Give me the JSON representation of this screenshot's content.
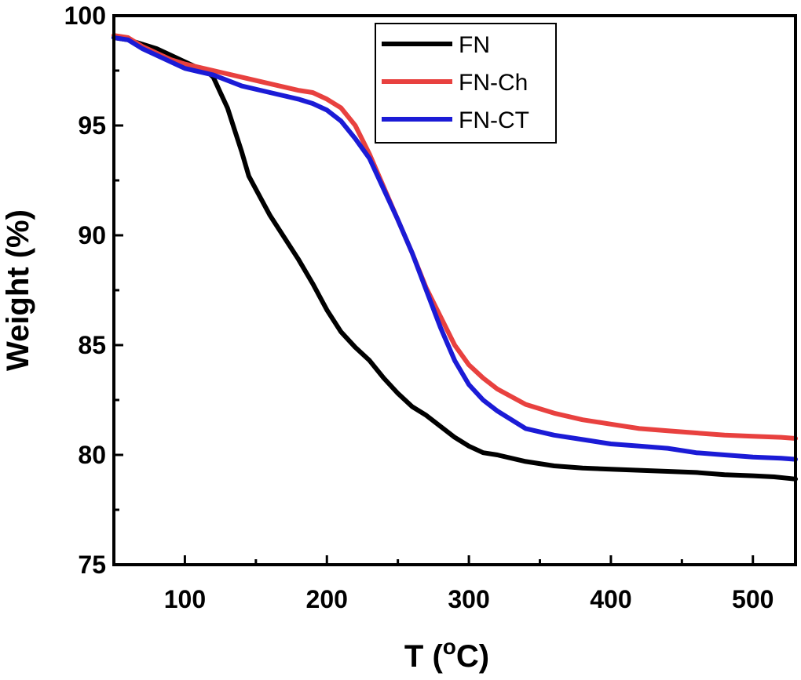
{
  "chart_data": {
    "type": "line",
    "title": "",
    "xlabel": "T (",
    "xlabel_sup": "o",
    "xlabel_end": "C)",
    "ylabel": "Weight (%)",
    "xlim": [
      50,
      530
    ],
    "ylim": [
      75,
      100
    ],
    "x_ticks": [
      100,
      200,
      300,
      400,
      500
    ],
    "y_ticks": [
      75,
      80,
      85,
      90,
      95,
      100
    ],
    "grid": false,
    "legend_position": "top-center",
    "series": [
      {
        "name": "FN",
        "color": "#000000",
        "points": [
          [
            50,
            99.0
          ],
          [
            60,
            98.9
          ],
          [
            70,
            98.7
          ],
          [
            80,
            98.5
          ],
          [
            90,
            98.2
          ],
          [
            100,
            97.9
          ],
          [
            110,
            97.6
          ],
          [
            115,
            97.5
          ],
          [
            120,
            97.2
          ],
          [
            125,
            96.5
          ],
          [
            130,
            95.8
          ],
          [
            135,
            94.8
          ],
          [
            140,
            93.8
          ],
          [
            145,
            92.7
          ],
          [
            150,
            92.1
          ],
          [
            160,
            90.9
          ],
          [
            170,
            89.9
          ],
          [
            180,
            88.9
          ],
          [
            190,
            87.8
          ],
          [
            200,
            86.6
          ],
          [
            210,
            85.6
          ],
          [
            220,
            84.9
          ],
          [
            230,
            84.3
          ],
          [
            240,
            83.5
          ],
          [
            250,
            82.8
          ],
          [
            260,
            82.2
          ],
          [
            270,
            81.8
          ],
          [
            280,
            81.3
          ],
          [
            290,
            80.8
          ],
          [
            300,
            80.4
          ],
          [
            310,
            80.1
          ],
          [
            320,
            80.0
          ],
          [
            340,
            79.7
          ],
          [
            360,
            79.5
          ],
          [
            380,
            79.4
          ],
          [
            400,
            79.35
          ],
          [
            420,
            79.3
          ],
          [
            440,
            79.25
          ],
          [
            460,
            79.2
          ],
          [
            480,
            79.1
          ],
          [
            500,
            79.05
          ],
          [
            515,
            79.0
          ],
          [
            530,
            78.9
          ]
        ]
      },
      {
        "name": "FN-Ch",
        "color": "#e8413f",
        "points": [
          [
            50,
            99.1
          ],
          [
            60,
            99.0
          ],
          [
            70,
            98.6
          ],
          [
            80,
            98.3
          ],
          [
            90,
            98.0
          ],
          [
            100,
            97.8
          ],
          [
            120,
            97.5
          ],
          [
            140,
            97.2
          ],
          [
            160,
            96.9
          ],
          [
            180,
            96.6
          ],
          [
            190,
            96.5
          ],
          [
            200,
            96.2
          ],
          [
            210,
            95.8
          ],
          [
            220,
            95.0
          ],
          [
            230,
            93.7
          ],
          [
            240,
            92.2
          ],
          [
            250,
            90.7
          ],
          [
            260,
            89.2
          ],
          [
            270,
            87.6
          ],
          [
            280,
            86.3
          ],
          [
            290,
            85.0
          ],
          [
            300,
            84.1
          ],
          [
            310,
            83.5
          ],
          [
            320,
            83.0
          ],
          [
            340,
            82.3
          ],
          [
            360,
            81.9
          ],
          [
            380,
            81.6
          ],
          [
            400,
            81.4
          ],
          [
            420,
            81.2
          ],
          [
            440,
            81.1
          ],
          [
            460,
            81.0
          ],
          [
            480,
            80.9
          ],
          [
            500,
            80.85
          ],
          [
            520,
            80.8
          ],
          [
            530,
            80.75
          ]
        ]
      },
      {
        "name": "FN-CT",
        "color": "#1b1bd6",
        "points": [
          [
            50,
            99.0
          ],
          [
            60,
            98.9
          ],
          [
            70,
            98.5
          ],
          [
            80,
            98.2
          ],
          [
            90,
            97.9
          ],
          [
            100,
            97.6
          ],
          [
            120,
            97.3
          ],
          [
            140,
            96.8
          ],
          [
            160,
            96.5
          ],
          [
            180,
            96.2
          ],
          [
            190,
            96.0
          ],
          [
            200,
            95.7
          ],
          [
            210,
            95.2
          ],
          [
            220,
            94.4
          ],
          [
            230,
            93.5
          ],
          [
            240,
            92.1
          ],
          [
            250,
            90.7
          ],
          [
            260,
            89.2
          ],
          [
            270,
            87.5
          ],
          [
            280,
            85.8
          ],
          [
            290,
            84.3
          ],
          [
            300,
            83.2
          ],
          [
            310,
            82.5
          ],
          [
            320,
            82.0
          ],
          [
            340,
            81.2
          ],
          [
            360,
            80.9
          ],
          [
            380,
            80.7
          ],
          [
            400,
            80.5
          ],
          [
            420,
            80.4
          ],
          [
            440,
            80.3
          ],
          [
            460,
            80.1
          ],
          [
            480,
            80.0
          ],
          [
            500,
            79.9
          ],
          [
            520,
            79.85
          ],
          [
            530,
            79.8
          ]
        ]
      }
    ]
  }
}
